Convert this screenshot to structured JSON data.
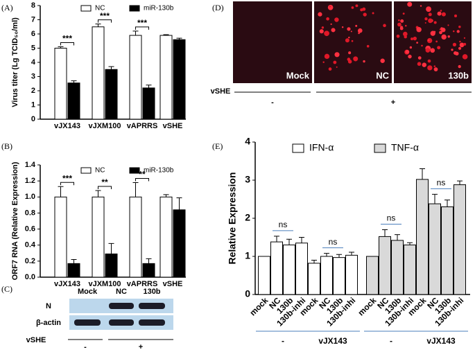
{
  "panel_labels": [
    "(A)",
    "(B)",
    "(C)",
    "(D)",
    "(E)"
  ],
  "chart_data": [
    {
      "type": "bar",
      "ylabel": "Virus titer (Lg TCID₅₀/ml)",
      "categories": [
        "vJX143",
        "vJXM100",
        "vAPRRS",
        "vSHE"
      ],
      "series": [
        {
          "name": "NC",
          "color": "#ffffff",
          "values": [
            5.0,
            6.5,
            5.9,
            5.9
          ],
          "errors": [
            0.1,
            0.2,
            0.3,
            0.05
          ]
        },
        {
          "name": "miR-130b",
          "color": "#000000",
          "values": [
            2.55,
            3.5,
            2.2,
            5.6
          ],
          "errors": [
            0.15,
            0.2,
            0.2,
            0.1
          ]
        }
      ],
      "significance": [
        "***",
        "***",
        "***",
        null
      ],
      "ylim": [
        0,
        8
      ],
      "yticks": [
        0,
        1,
        2,
        3,
        4,
        5,
        6,
        7,
        8
      ]
    },
    {
      "type": "bar",
      "ylabel": "ORF7 RNA (Relative Expression)",
      "categories": [
        "vJX143",
        "vJXM100",
        "vAPRRS",
        "vSHE"
      ],
      "series": [
        {
          "name": "NC",
          "color": "#ffffff",
          "values": [
            1.0,
            1.0,
            1.0,
            1.0
          ],
          "errors": [
            0.13,
            0.08,
            0.18,
            0.03
          ]
        },
        {
          "name": "miR-130b",
          "color": "#000000",
          "values": [
            0.17,
            0.29,
            0.17,
            0.84
          ],
          "errors": [
            0.05,
            0.13,
            0.06,
            0.15
          ]
        }
      ],
      "significance": [
        "***",
        "**",
        "**",
        null
      ],
      "ylim": [
        0,
        1.4
      ],
      "yticks": [
        {
          "value": 0,
          "label": "0.0"
        },
        0.2,
        0.4,
        0.6,
        0.8,
        {
          "value": 1,
          "label": "1.0"
        },
        1.2,
        1.4
      ]
    },
    {
      "type": "bar",
      "ylabel": "Relative Expression",
      "categories": [
        "mock",
        "NC",
        "130b",
        "130b-inhi",
        "mock",
        "NC",
        "130b",
        "130b-inhi",
        "mock",
        "NC",
        "130b",
        "130b-inhi",
        "mock",
        "NC",
        "130b",
        "130b-inhi"
      ],
      "series": [
        {
          "name": "IFN-α",
          "color": "#ffffff",
          "values": [
            1.0,
            1.38,
            1.3,
            1.35,
            0.82,
            1.0,
            0.97,
            1.03,
            null,
            null,
            null,
            null,
            null,
            null,
            null,
            null
          ],
          "errors": [
            0,
            0.15,
            0.15,
            0.15,
            0.08,
            0.08,
            0.08,
            0.08,
            null,
            null,
            null,
            null,
            null,
            null,
            null,
            null
          ]
        },
        {
          "name": "TNF-α",
          "color": "#d9d9d9",
          "values": [
            null,
            null,
            null,
            null,
            null,
            null,
            null,
            null,
            1.0,
            1.52,
            1.42,
            1.3,
            3.02,
            2.38,
            2.3,
            2.88
          ],
          "errors": [
            null,
            null,
            null,
            null,
            null,
            null,
            null,
            null,
            0,
            0.18,
            0.15,
            0.06,
            0.28,
            0.25,
            0.18,
            0.1
          ]
        }
      ],
      "significance": [
        null,
        "ns",
        null,
        null,
        null,
        "ns",
        null,
        null,
        null,
        "ns",
        null,
        null,
        null,
        "ns",
        null,
        null
      ],
      "groups": [
        "-",
        "vJX143",
        "-",
        "vJX143"
      ],
      "ylim": [
        0,
        4
      ],
      "yticks": [
        0,
        1,
        2,
        3,
        4
      ]
    }
  ],
  "blot": {
    "lanes": [
      "Mock",
      "NC",
      "130b"
    ],
    "rows": [
      "N",
      "β-actin"
    ],
    "treatment": "vSHE",
    "groups": [
      "-",
      "+"
    ]
  },
  "images": {
    "labels": [
      "Mock",
      "NC",
      "130b"
    ],
    "treatment": "vSHE",
    "groups": [
      "-",
      "+"
    ]
  }
}
